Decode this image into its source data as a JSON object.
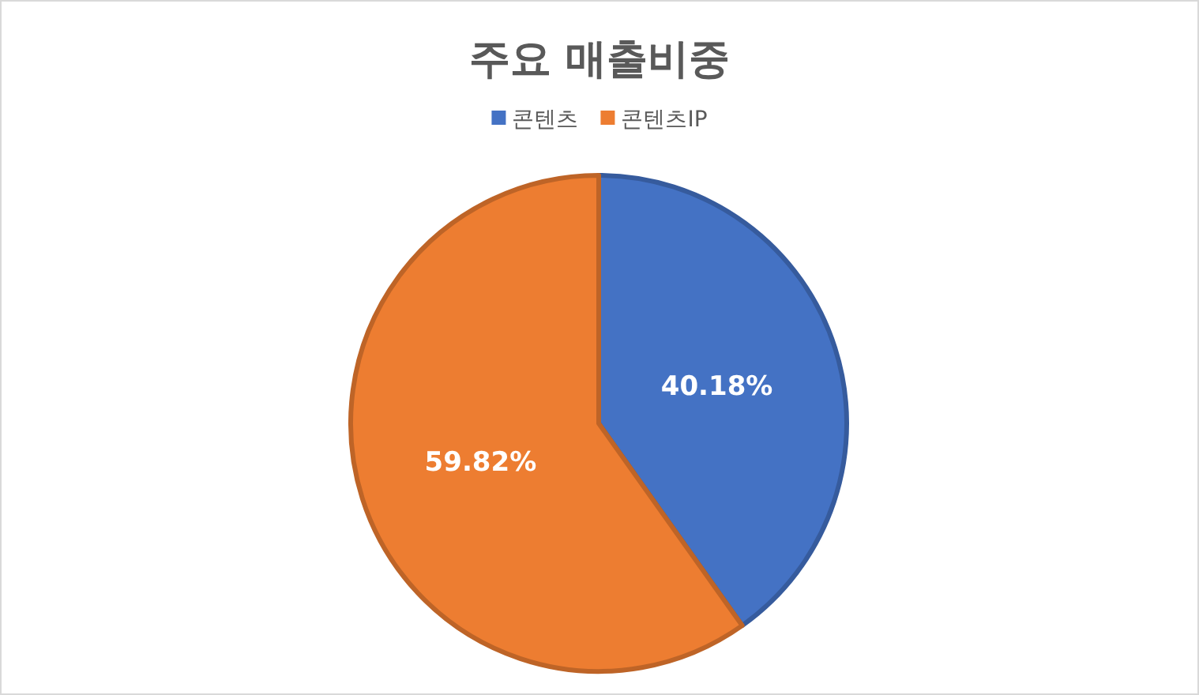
{
  "chart_data": {
    "type": "pie",
    "title": "주요 매출비중",
    "categories": [
      "콘텐츠",
      "콘텐츠IP"
    ],
    "values": [
      40.18,
      59.82
    ],
    "value_labels": [
      "40.18%",
      "59.82%"
    ],
    "colors": [
      "#4472c4",
      "#ed7d31"
    ],
    "legend": "top"
  }
}
